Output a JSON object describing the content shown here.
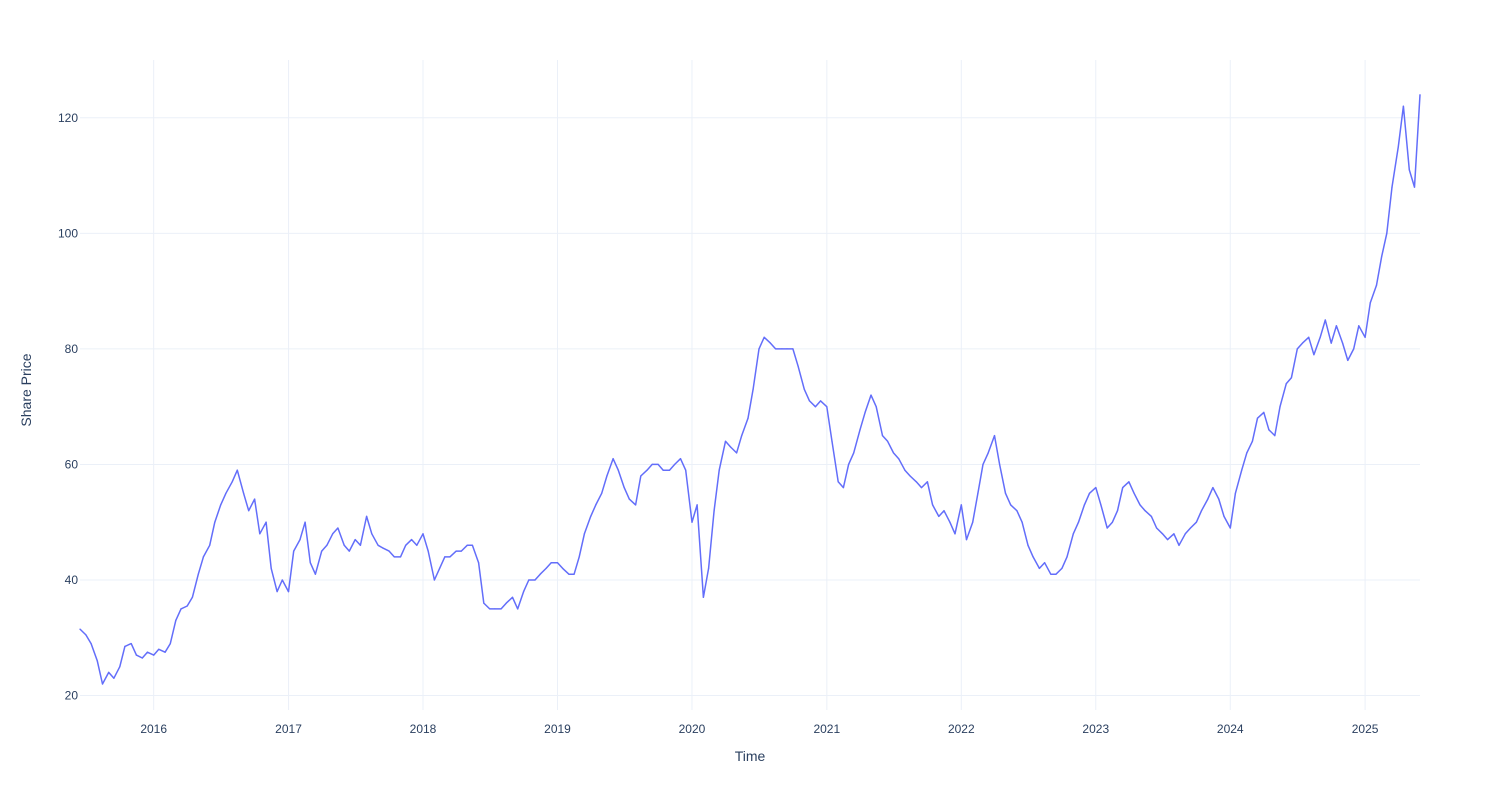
{
  "chart_data": {
    "type": "line",
    "title": "",
    "xlabel": "Time",
    "ylabel": "Share Price",
    "xlim": [
      "2015-06-15",
      "2025-05-30"
    ],
    "ylim": [
      17.5,
      130
    ],
    "x_ticks": [
      "2016",
      "2017",
      "2018",
      "2019",
      "2020",
      "2021",
      "2022",
      "2023",
      "2024",
      "2025"
    ],
    "y_ticks": [
      20,
      40,
      60,
      80,
      100,
      120
    ],
    "grid": true,
    "legend": "none",
    "line_color": "#636efa",
    "grid_color": "#ebf0f8",
    "text_color": "#2a3f5f",
    "series": [
      {
        "x": [
          "2015-06-15",
          "2015-07-01",
          "2015-07-15",
          "2015-08-01",
          "2015-08-15",
          "2015-09-01",
          "2015-09-15",
          "2015-10-01",
          "2015-10-15",
          "2015-11-01",
          "2015-11-15",
          "2015-12-01",
          "2015-12-15",
          "2016-01-01",
          "2016-01-15",
          "2016-02-01",
          "2016-02-15",
          "2016-03-01",
          "2016-03-15",
          "2016-04-01",
          "2016-04-15",
          "2016-05-01",
          "2016-05-15",
          "2016-06-01",
          "2016-06-15",
          "2016-07-01",
          "2016-07-15",
          "2016-08-01",
          "2016-08-15",
          "2016-09-01",
          "2016-09-15",
          "2016-10-01",
          "2016-10-15",
          "2016-11-01",
          "2016-11-15",
          "2016-12-01",
          "2016-12-15",
          "2017-01-01",
          "2017-01-15",
          "2017-02-01",
          "2017-02-15",
          "2017-03-01",
          "2017-03-15",
          "2017-04-01",
          "2017-04-15",
          "2017-05-01",
          "2017-05-15",
          "2017-06-01",
          "2017-06-15",
          "2017-07-01",
          "2017-07-15",
          "2017-08-01",
          "2017-08-15",
          "2017-09-01",
          "2017-09-15",
          "2017-10-01",
          "2017-10-15",
          "2017-11-01",
          "2017-11-15",
          "2017-12-01",
          "2017-12-15",
          "2018-01-01",
          "2018-01-15",
          "2018-02-01",
          "2018-02-15",
          "2018-03-01",
          "2018-03-15",
          "2018-04-01",
          "2018-04-15",
          "2018-05-01",
          "2018-05-15",
          "2018-06-01",
          "2018-06-15",
          "2018-07-01",
          "2018-07-15",
          "2018-08-01",
          "2018-08-15",
          "2018-09-01",
          "2018-09-15",
          "2018-10-01",
          "2018-10-15",
          "2018-11-01",
          "2018-11-15",
          "2018-12-01",
          "2018-12-15",
          "2019-01-01",
          "2019-01-15",
          "2019-02-01",
          "2019-02-15",
          "2019-03-01",
          "2019-03-15",
          "2019-04-01",
          "2019-04-15",
          "2019-05-01",
          "2019-05-15",
          "2019-06-01",
          "2019-06-15",
          "2019-07-01",
          "2019-07-15",
          "2019-08-01",
          "2019-08-15",
          "2019-09-01",
          "2019-09-15",
          "2019-10-01",
          "2019-10-15",
          "2019-11-01",
          "2019-11-15",
          "2019-12-01",
          "2019-12-15",
          "2020-01-01",
          "2020-01-15",
          "2020-02-01",
          "2020-02-15",
          "2020-03-01",
          "2020-03-15",
          "2020-04-01",
          "2020-04-15",
          "2020-05-01",
          "2020-05-15",
          "2020-06-01",
          "2020-06-15",
          "2020-07-01",
          "2020-07-15",
          "2020-08-01",
          "2020-08-15",
          "2020-09-01",
          "2020-09-15",
          "2020-10-01",
          "2020-10-15",
          "2020-11-01",
          "2020-11-15",
          "2020-12-01",
          "2020-12-15",
          "2021-01-01",
          "2021-01-15",
          "2021-02-01",
          "2021-02-15",
          "2021-03-01",
          "2021-03-15",
          "2021-04-01",
          "2021-04-15",
          "2021-05-01",
          "2021-05-15",
          "2021-06-01",
          "2021-06-15",
          "2021-07-01",
          "2021-07-15",
          "2021-08-01",
          "2021-08-15",
          "2021-09-01",
          "2021-09-15",
          "2021-10-01",
          "2021-10-15",
          "2021-11-01",
          "2021-11-15",
          "2021-12-01",
          "2021-12-15",
          "2022-01-01",
          "2022-01-15",
          "2022-02-01",
          "2022-02-15",
          "2022-03-01",
          "2022-03-15",
          "2022-04-01",
          "2022-04-15",
          "2022-05-01",
          "2022-05-15",
          "2022-06-01",
          "2022-06-15",
          "2022-07-01",
          "2022-07-15",
          "2022-08-01",
          "2022-08-15",
          "2022-09-01",
          "2022-09-15",
          "2022-10-01",
          "2022-10-15",
          "2022-11-01",
          "2022-11-15",
          "2022-12-01",
          "2022-12-15",
          "2023-01-01",
          "2023-01-15",
          "2023-02-01",
          "2023-02-15",
          "2023-03-01",
          "2023-03-15",
          "2023-04-01",
          "2023-04-15",
          "2023-05-01",
          "2023-05-15",
          "2023-06-01",
          "2023-06-15",
          "2023-07-01",
          "2023-07-15",
          "2023-08-01",
          "2023-08-15",
          "2023-09-01",
          "2023-09-15",
          "2023-10-01",
          "2023-10-15",
          "2023-11-01",
          "2023-11-15",
          "2023-12-01",
          "2023-12-15",
          "2024-01-01",
          "2024-01-15",
          "2024-02-01",
          "2024-02-15",
          "2024-03-01",
          "2024-03-15",
          "2024-04-01",
          "2024-04-15",
          "2024-05-01",
          "2024-05-15",
          "2024-06-01",
          "2024-06-15",
          "2024-07-01",
          "2024-07-15",
          "2024-08-01",
          "2024-08-15",
          "2024-09-01",
          "2024-09-15",
          "2024-10-01",
          "2024-10-15",
          "2024-11-01",
          "2024-11-15",
          "2024-12-01",
          "2024-12-15",
          "2025-01-01",
          "2025-01-15",
          "2025-02-01",
          "2025-02-15",
          "2025-03-01",
          "2025-03-15",
          "2025-04-01",
          "2025-04-15",
          "2025-05-01",
          "2025-05-15",
          "2025-05-30"
        ],
        "y": [
          31.5,
          30.5,
          29,
          26,
          22,
          24,
          23,
          25,
          28.5,
          29,
          27,
          26.5,
          27.5,
          27,
          28,
          27.5,
          29,
          33,
          35,
          35.5,
          37,
          41,
          44,
          46,
          50,
          53,
          55,
          57,
          59,
          55,
          52,
          54,
          48,
          50,
          42,
          38,
          40,
          38,
          45,
          47,
          50,
          43,
          41,
          45,
          46,
          48,
          49,
          46,
          45,
          47,
          46,
          51,
          48,
          46,
          45.5,
          45,
          44,
          44,
          46,
          47,
          46,
          48,
          45,
          40,
          42,
          44,
          44,
          45,
          45,
          46,
          46,
          43,
          36,
          35,
          35,
          35,
          36,
          37,
          35,
          38,
          40,
          40,
          41,
          42,
          43,
          43,
          42,
          41,
          41,
          44,
          48,
          51,
          53,
          55,
          58,
          61,
          59,
          56,
          54,
          53,
          58,
          59,
          60,
          60,
          59,
          59,
          60,
          61,
          59,
          50,
          53,
          37,
          42,
          52,
          59,
          64,
          63,
          62,
          65,
          68,
          73,
          80,
          82,
          81,
          80,
          80,
          80,
          80,
          77,
          73,
          71,
          70,
          71,
          70,
          64,
          57,
          56,
          60,
          62,
          66,
          69,
          72,
          70,
          65,
          64,
          62,
          61,
          59,
          58,
          57,
          56,
          57,
          53,
          51,
          52,
          50,
          48,
          53,
          47,
          50,
          55,
          60,
          62,
          65,
          60,
          55,
          53,
          52,
          50,
          46,
          44,
          42,
          43,
          41,
          41,
          42,
          44,
          48,
          50,
          53,
          55,
          56,
          53,
          49,
          50,
          52,
          56,
          57,
          55,
          53,
          52,
          51,
          49,
          48,
          47,
          48,
          46,
          48,
          49,
          50,
          52,
          54,
          56,
          54,
          51,
          49,
          55,
          59,
          62,
          64,
          68,
          69,
          66,
          65,
          70,
          74,
          75,
          80,
          81,
          82,
          79,
          82,
          85,
          81,
          84,
          81,
          78,
          80,
          84,
          82,
          88,
          91,
          96,
          100,
          108,
          115,
          122,
          111,
          108,
          124
        ]
      }
    ]
  }
}
